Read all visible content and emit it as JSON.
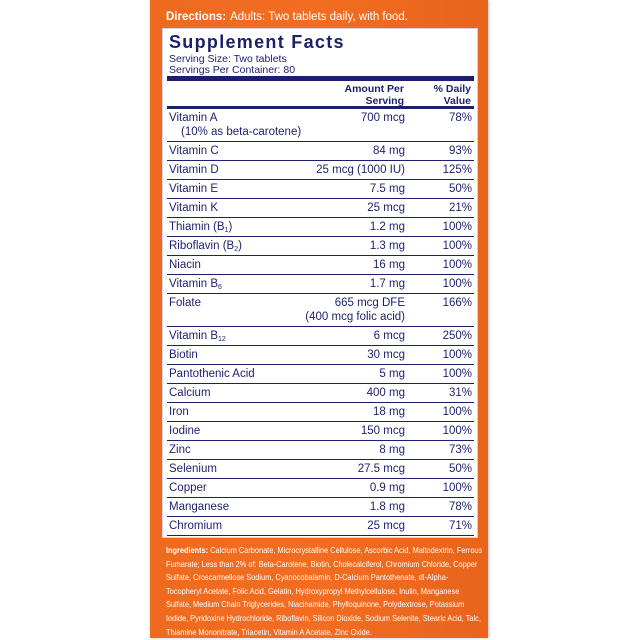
{
  "directions": {
    "label": "Directions:",
    "text": "Adults:  Two tablets daily, with food."
  },
  "facts": {
    "title": "Supplement Facts",
    "serving_size": "Serving Size: Two tablets",
    "servings_per_container": "Servings Per Container: 80",
    "col_amount_1": "Amount Per",
    "col_amount_2": "Serving",
    "col_dv_1": "% Daily",
    "col_dv_2": "Value",
    "rows": [
      {
        "name": "Vitamin A",
        "sub": "",
        "name2": "(10% as beta-carotene)",
        "amount": "700 mcg",
        "amount2": "",
        "dv": "78%"
      },
      {
        "name": "Vitamin C",
        "sub": "",
        "name2": "",
        "amount": "84 mg",
        "amount2": "",
        "dv": "93%"
      },
      {
        "name": "Vitamin D",
        "sub": "",
        "name2": "",
        "amount": "25 mcg (1000 IU)",
        "amount2": "",
        "dv": "125%"
      },
      {
        "name": "Vitamin E",
        "sub": "",
        "name2": "",
        "amount": "7.5 mg",
        "amount2": "",
        "dv": "50%"
      },
      {
        "name": "Vitamin K",
        "sub": "",
        "name2": "",
        "amount": "25 mcg",
        "amount2": "",
        "dv": "21%"
      },
      {
        "name": "Thiamin (B",
        "sub": "1",
        "close": ")",
        "name2": "",
        "amount": "1.2 mg",
        "amount2": "",
        "dv": "100%"
      },
      {
        "name": "Riboflavin (B",
        "sub": "2",
        "close": ")",
        "name2": "",
        "amount": "1.3 mg",
        "amount2": "",
        "dv": "100%"
      },
      {
        "name": "Niacin",
        "sub": "",
        "name2": "",
        "amount": "16 mg",
        "amount2": "",
        "dv": "100%"
      },
      {
        "name": "Vitamin B",
        "sub": "6",
        "name2": "",
        "amount": "1.7 mg",
        "amount2": "",
        "dv": "100%"
      },
      {
        "name": "Folate",
        "sub": "",
        "name2": "",
        "amount": "665 mcg DFE",
        "amount2": "(400 mcg folic acid)",
        "dv": "166%"
      },
      {
        "name": "Vitamin B",
        "sub": "12",
        "name2": "",
        "amount": "6 mcg",
        "amount2": "",
        "dv": "250%"
      },
      {
        "name": "Biotin",
        "sub": "",
        "name2": "",
        "amount": "30 mcg",
        "amount2": "",
        "dv": "100%"
      },
      {
        "name": "Pantothenic Acid",
        "sub": "",
        "name2": "",
        "amount": "5 mg",
        "amount2": "",
        "dv": "100%"
      },
      {
        "name": "Calcium",
        "sub": "",
        "name2": "",
        "amount": "400 mg",
        "amount2": "",
        "dv": "31%"
      },
      {
        "name": "Iron",
        "sub": "",
        "name2": "",
        "amount": "18 mg",
        "amount2": "",
        "dv": "100%"
      },
      {
        "name": "Iodine",
        "sub": "",
        "name2": "",
        "amount": "150 mcg",
        "amount2": "",
        "dv": "100%"
      },
      {
        "name": "Zinc",
        "sub": "",
        "name2": "",
        "amount": "8 mg",
        "amount2": "",
        "dv": "73%"
      },
      {
        "name": "Selenium",
        "sub": "",
        "name2": "",
        "amount": "27.5 mcg",
        "amount2": "",
        "dv": "50%"
      },
      {
        "name": "Copper",
        "sub": "",
        "name2": "",
        "amount": "0.9 mg",
        "amount2": "",
        "dv": "100%"
      },
      {
        "name": "Manganese",
        "sub": "",
        "name2": "",
        "amount": "1.8 mg",
        "amount2": "",
        "dv": "78%"
      },
      {
        "name": "Chromium",
        "sub": "",
        "name2": "",
        "amount": "25 mcg",
        "amount2": "",
        "dv": "71%"
      }
    ]
  },
  "ingredients": {
    "label": "Ingredients:",
    "text": "Calcium Carbonate, Microcrystalline  Cellulose, Ascorbic Acid, Maltodextrin, Ferrous Fumarate; Less than 2% of: Beta-Carotene, Biotin, Cholecalciferol, Chromium Chloride, Copper Sulfate, Croscarmellose Sodium, Cyanocobalamin, D-Calcium Pantothenate, dl-Alpha-Tocopheryl Acetate, Folic Acid, Gelatin, Hydroxypropyl Methylcellulose, Inulin, Manganese Sulfate, Medium Chain Triglycerides, Niacinamide, Phylloquinone, Polydextrose, Potassium Iodide, Pyridoxine Hydrochloride, Riboflavin, Silicon Dioxide, Sodium Selenite, Stearic Acid, Talc, Thiamine Mononitrate, Triacetin, Vitamin A Acetate, Zinc Oxide."
  },
  "colors": {
    "orange": "#f26d21",
    "navy": "#1c1f6b",
    "white": "#ffffff"
  }
}
